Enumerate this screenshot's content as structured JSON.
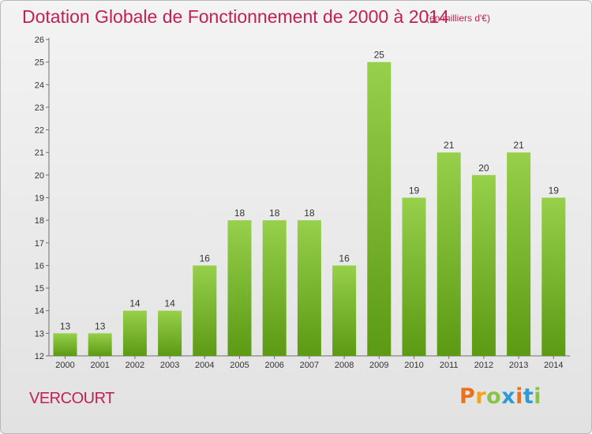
{
  "chart_data": {
    "type": "bar",
    "title": "Dotation Globale de Fonctionnement de 2000 à 2014",
    "subtitle": "(en milliers d'€)",
    "categories": [
      "2000",
      "2001",
      "2002",
      "2003",
      "2004",
      "2005",
      "2006",
      "2007",
      "2008",
      "2009",
      "2010",
      "2011",
      "2012",
      "2013",
      "2014"
    ],
    "values": [
      13,
      13,
      14,
      14,
      16,
      18,
      18,
      18,
      16,
      25,
      19,
      21,
      20,
      21,
      19
    ],
    "ylim": [
      12,
      26
    ],
    "yticks": [
      12,
      13,
      14,
      15,
      16,
      17,
      18,
      19,
      20,
      21,
      22,
      23,
      24,
      25,
      26
    ],
    "grid": false,
    "bar_color": "#7cbd2a",
    "xlabel": "",
    "ylabel": ""
  },
  "footer": {
    "commune": "VERCOURT",
    "logo_letters": [
      "P",
      "r",
      "o",
      "x",
      "i",
      "t",
      "i"
    ],
    "logo_colors": [
      "#e8731c",
      "#f2a21c",
      "#8bc34a",
      "#2e9bd6",
      "#e8731c",
      "#2e9bd6",
      "#8bc34a"
    ]
  }
}
